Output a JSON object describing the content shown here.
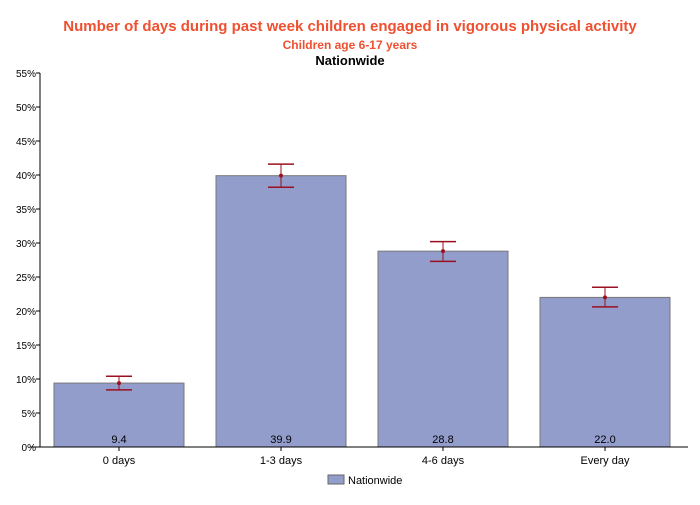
{
  "chart_data": {
    "type": "bar",
    "title": "Number of days during past week children engaged in vigorous physical activity",
    "subtitle": "Children age 6-17 years",
    "subtitle2": "Nationwide",
    "categories": [
      "0 days",
      "1-3 days",
      "4-6 days",
      "Every day"
    ],
    "series": [
      {
        "name": "Nationwide",
        "values": [
          9.4,
          39.9,
          28.8,
          22.0
        ],
        "error_low": [
          8.4,
          38.2,
          27.3,
          20.6
        ],
        "error_high": [
          10.4,
          41.6,
          30.2,
          23.5
        ],
        "color": "#929dcc"
      }
    ],
    "value_labels": [
      "9.4",
      "39.9",
      "28.8",
      "22.0"
    ],
    "ylim": [
      0,
      55
    ],
    "yticks": [
      "0%",
      "5%",
      "10%",
      "15%",
      "20%",
      "25%",
      "30%",
      "35%",
      "40%",
      "45%",
      "50%",
      "55%"
    ],
    "grid": false,
    "legend": "bottom",
    "title_color": "#f05030",
    "error_bar_color": "#9b1020"
  }
}
